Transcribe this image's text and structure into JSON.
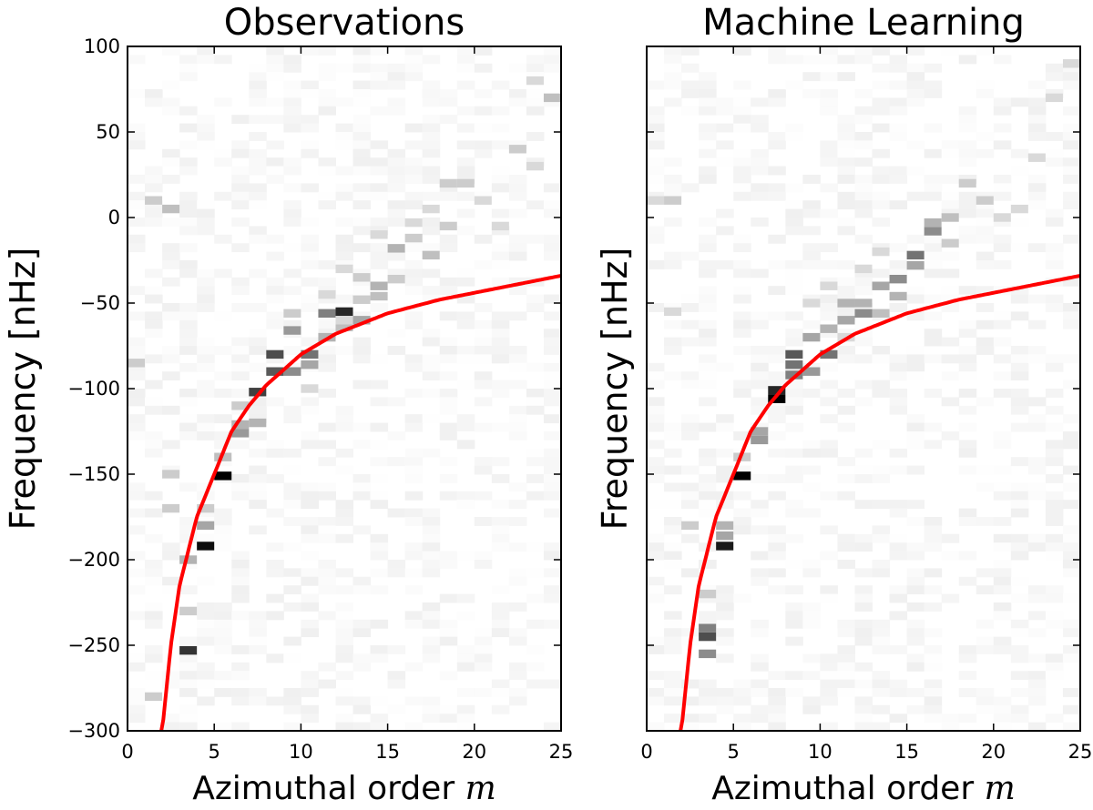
{
  "chart_data": [
    {
      "type": "heatmap",
      "title": "Observations",
      "xlabel": "Azimuthal order",
      "xlabel_symbol": "m",
      "ylabel": "Frequency [nHz]",
      "xlim": [
        0,
        25
      ],
      "ylim": [
        -300,
        100
      ],
      "xticks": [
        0,
        5,
        10,
        15,
        20,
        25
      ],
      "yticks": [
        100,
        50,
        0,
        -50,
        -100,
        -150,
        -200,
        -250,
        -300
      ],
      "show_ytick_labels": true,
      "colormap": "gray_r",
      "curve": {
        "color": "#ff0000",
        "points": [
          [
            2,
            -300
          ],
          [
            2.5,
            -250
          ],
          [
            3,
            -215
          ],
          [
            4,
            -175
          ],
          [
            5,
            -150
          ],
          [
            6,
            -125
          ],
          [
            7,
            -110
          ],
          [
            8,
            -98
          ],
          [
            10,
            -80
          ],
          [
            12,
            -68
          ],
          [
            15,
            -56
          ],
          [
            18,
            -48
          ],
          [
            20,
            -44
          ],
          [
            22,
            -40
          ],
          [
            25,
            -34
          ]
        ]
      },
      "cells": [
        [
          5,
          -151,
          1.0
        ],
        [
          4,
          -192,
          0.95
        ],
        [
          3,
          -253,
          0.8
        ],
        [
          12,
          -55,
          0.85
        ],
        [
          7,
          -102,
          0.75
        ],
        [
          8,
          -80,
          0.7
        ],
        [
          8,
          -90,
          0.65
        ],
        [
          9,
          -90,
          0.45
        ],
        [
          9,
          -66,
          0.4
        ],
        [
          10,
          -80,
          0.55
        ],
        [
          10,
          -86,
          0.35
        ],
        [
          11,
          -56,
          0.5
        ],
        [
          11,
          -70,
          0.3
        ],
        [
          12,
          -64,
          0.25
        ],
        [
          13,
          -60,
          0.35
        ],
        [
          14,
          -40,
          0.3
        ],
        [
          14,
          -46,
          0.25
        ],
        [
          15,
          -36,
          0.2
        ],
        [
          15,
          -18,
          0.3
        ],
        [
          13,
          -35,
          0.2
        ],
        [
          16,
          -12,
          0.2
        ],
        [
          17,
          -22,
          0.25
        ],
        [
          16,
          -3,
          0.15
        ],
        [
          18,
          -5,
          0.2
        ],
        [
          19,
          20,
          0.2
        ],
        [
          20,
          10,
          0.15
        ],
        [
          21,
          -5,
          0.15
        ],
        [
          22,
          40,
          0.2
        ],
        [
          23,
          30,
          0.15
        ],
        [
          24,
          70,
          0.25
        ],
        [
          6,
          -126,
          0.4
        ],
        [
          6,
          -121,
          0.3
        ],
        [
          5,
          -140,
          0.25
        ],
        [
          4,
          -180,
          0.35
        ],
        [
          3,
          -200,
          0.3
        ],
        [
          3,
          -230,
          0.2
        ],
        [
          4,
          -170,
          0.2
        ],
        [
          2,
          -170,
          0.2
        ],
        [
          7,
          -120,
          0.3
        ],
        [
          6,
          -110,
          0.2
        ],
        [
          1,
          10,
          0.2
        ],
        [
          2,
          5,
          0.25
        ],
        [
          0,
          -85,
          0.2
        ],
        [
          1,
          -280,
          0.2
        ],
        [
          23,
          80,
          0.15
        ],
        [
          18,
          20,
          0.2
        ],
        [
          17,
          5,
          0.15
        ],
        [
          12,
          -30,
          0.15
        ],
        [
          11,
          -45,
          0.15
        ],
        [
          9,
          -56,
          0.2
        ],
        [
          10,
          -100,
          0.15
        ],
        [
          13,
          -48,
          0.2
        ],
        [
          12,
          -60,
          0.15
        ],
        [
          2,
          -150,
          0.2
        ],
        [
          14,
          -10,
          0.15
        ]
      ]
    },
    {
      "type": "heatmap",
      "title": "Machine Learning",
      "xlabel": "Azimuthal order",
      "xlabel_symbol": "m",
      "ylabel": "Frequency [nHz]",
      "xlim": [
        0,
        25
      ],
      "ylim": [
        -300,
        100
      ],
      "xticks": [
        0,
        5,
        10,
        15,
        20,
        25
      ],
      "yticks": [
        100,
        50,
        0,
        -50,
        -100,
        -150,
        -200,
        -250,
        -300
      ],
      "show_ytick_labels": false,
      "colormap": "gray_r",
      "curve": {
        "color": "#ff0000",
        "points": [
          [
            2,
            -300
          ],
          [
            2.5,
            -250
          ],
          [
            3,
            -215
          ],
          [
            4,
            -175
          ],
          [
            5,
            -150
          ],
          [
            6,
            -125
          ],
          [
            7,
            -110
          ],
          [
            8,
            -98
          ],
          [
            10,
            -80
          ],
          [
            12,
            -68
          ],
          [
            15,
            -56
          ],
          [
            18,
            -48
          ],
          [
            20,
            -44
          ],
          [
            22,
            -40
          ],
          [
            25,
            -34
          ]
        ]
      },
      "cells": [
        [
          5,
          -151,
          1.0
        ],
        [
          4,
          -192,
          0.9
        ],
        [
          7,
          -106,
          1.0
        ],
        [
          7,
          -101,
          0.85
        ],
        [
          3,
          -245,
          0.7
        ],
        [
          3,
          -240,
          0.5
        ],
        [
          3,
          -255,
          0.45
        ],
        [
          8,
          -80,
          0.65
        ],
        [
          8,
          -86,
          0.55
        ],
        [
          8,
          -92,
          0.5
        ],
        [
          9,
          -90,
          0.4
        ],
        [
          10,
          -80,
          0.55
        ],
        [
          9,
          -70,
          0.35
        ],
        [
          10,
          -65,
          0.3
        ],
        [
          11,
          -60,
          0.35
        ],
        [
          12,
          -56,
          0.45
        ],
        [
          12,
          -50,
          0.3
        ],
        [
          13,
          -40,
          0.35
        ],
        [
          14,
          -36,
          0.45
        ],
        [
          15,
          -22,
          0.55
        ],
        [
          15,
          -28,
          0.35
        ],
        [
          16,
          -8,
          0.45
        ],
        [
          16,
          -3,
          0.3
        ],
        [
          17,
          0,
          0.25
        ],
        [
          14,
          -46,
          0.3
        ],
        [
          13,
          -56,
          0.25
        ],
        [
          11,
          -50,
          0.3
        ],
        [
          6,
          -130,
          0.4
        ],
        [
          6,
          -125,
          0.35
        ],
        [
          4,
          -180,
          0.3
        ],
        [
          4,
          -186,
          0.35
        ],
        [
          3,
          -220,
          0.2
        ],
        [
          5,
          -140,
          0.2
        ],
        [
          2,
          -180,
          0.2
        ],
        [
          1,
          10,
          0.2
        ],
        [
          0,
          10,
          0.15
        ],
        [
          1,
          -55,
          0.15
        ],
        [
          18,
          20,
          0.2
        ],
        [
          19,
          10,
          0.2
        ],
        [
          20,
          0,
          0.15
        ],
        [
          21,
          5,
          0.15
        ],
        [
          22,
          35,
          0.15
        ],
        [
          23,
          70,
          0.15
        ],
        [
          24,
          90,
          0.15
        ],
        [
          12,
          -30,
          0.15
        ],
        [
          10,
          -40,
          0.15
        ],
        [
          17,
          -15,
          0.2
        ],
        [
          9,
          -50,
          0.15
        ],
        [
          11,
          -70,
          0.15
        ],
        [
          13,
          -20,
          0.15
        ]
      ]
    }
  ]
}
